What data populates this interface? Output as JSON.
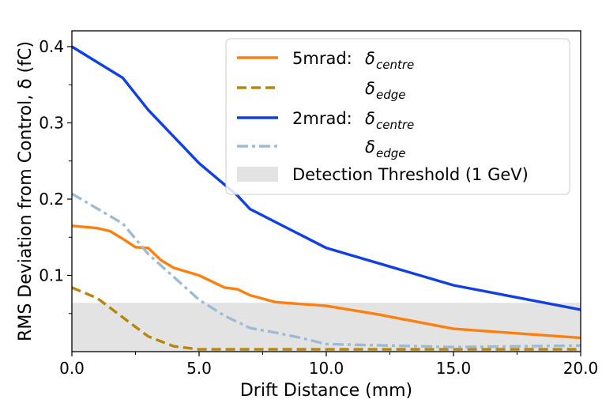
{
  "chart_data": {
    "type": "line",
    "xlabel": "Drift Distance (mm)",
    "ylabel": "RMS Deviation from Control, δ (fC)",
    "xlim": [
      0,
      20
    ],
    "ylim": [
      0,
      0.42
    ],
    "x_ticks": [
      "0.0",
      "5.0",
      "10.0",
      "15.0",
      "20.0"
    ],
    "y_ticks": [
      "0.1",
      "0.2",
      "0.3",
      "0.4"
    ],
    "y_tick_values": [
      0.1,
      0.2,
      0.3,
      0.4
    ],
    "x_tick_values": [
      0,
      5,
      10,
      15,
      20
    ],
    "grid": false,
    "legend_position": "top-right",
    "series": [
      {
        "name": "5mrad: δcentre",
        "legend_prefix": "5mrad: ",
        "legend_symbol": "δ",
        "legend_sub": "centre",
        "color": "#ff7f0e",
        "style": "solid",
        "x": [
          0,
          1,
          1.5,
          2,
          2.5,
          3,
          3.5,
          4,
          5,
          5.5,
          6,
          6.5,
          7,
          8,
          10,
          12,
          15,
          20
        ],
        "y": [
          0.165,
          0.162,
          0.158,
          0.148,
          0.137,
          0.136,
          0.12,
          0.11,
          0.1,
          0.092,
          0.084,
          0.082,
          0.074,
          0.065,
          0.06,
          0.049,
          0.03,
          0.018
        ]
      },
      {
        "name": "δedge",
        "legend_prefix": "",
        "legend_symbol": "δ",
        "legend_sub": "edge",
        "color": "#b8860b",
        "style": "dashed",
        "x": [
          0,
          1,
          2,
          3,
          4,
          5,
          6,
          8,
          10,
          15,
          20
        ],
        "y": [
          0.084,
          0.07,
          0.045,
          0.02,
          0.007,
          0.003,
          0.003,
          0.003,
          0.003,
          0.003,
          0.003
        ]
      },
      {
        "name": "2mrad: δcentre",
        "legend_prefix": "2mrad: ",
        "legend_symbol": "δ",
        "legend_sub": "centre",
        "color": "#0f3fe6",
        "style": "solid",
        "x": [
          0,
          2,
          3,
          5,
          6.5,
          7,
          10,
          15,
          20
        ],
        "y": [
          0.4,
          0.359,
          0.317,
          0.247,
          0.205,
          0.187,
          0.136,
          0.087,
          0.055
        ]
      },
      {
        "name": "δedge",
        "legend_prefix": "",
        "legend_symbol": "δ",
        "legend_sub": "edge",
        "color": "#9fbbd4",
        "style": "dashdot",
        "x": [
          0,
          2,
          3,
          4,
          5,
          6,
          7,
          8,
          9,
          10,
          15,
          20
        ],
        "y": [
          0.207,
          0.168,
          0.128,
          0.098,
          0.068,
          0.047,
          0.031,
          0.025,
          0.018,
          0.01,
          0.006,
          0.008
        ]
      }
    ],
    "threshold": {
      "name": "Detection Threshold (1 GeV)",
      "y0": 0,
      "y1": 0.064,
      "color": "#e3e3e3"
    }
  }
}
